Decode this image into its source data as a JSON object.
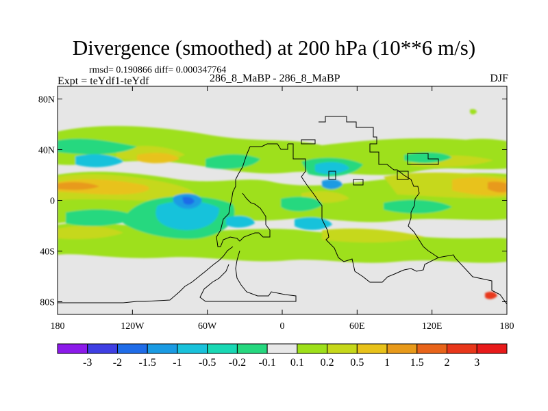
{
  "chart_data": {
    "type": "contour_map",
    "title": "Divergence (smoothed) at 200 hPa (10**6 m/s)",
    "stats_label": "rmsd= 0.190866 diff= 0.000347764",
    "experiment_label": "Expt = teYdf1-teYdf",
    "cases_label": "286_8_MaBP - 286_8_MaBP",
    "season_label": "DJF",
    "x_axis": {
      "range": [
        -180,
        180
      ],
      "ticks": [
        -180,
        -120,
        -60,
        0,
        60,
        120,
        180
      ],
      "tick_labels": [
        "180",
        "120W",
        "60W",
        "0",
        "60E",
        "120E",
        "180"
      ]
    },
    "y_axis": {
      "range": [
        -90,
        90
      ],
      "ticks": [
        80,
        40,
        0,
        -40,
        -80
      ],
      "tick_labels": [
        "80N",
        "40N",
        "0",
        "40S",
        "80S"
      ]
    },
    "colorbar": {
      "labels": [
        "-3",
        "-2",
        "-1.5",
        "-1",
        "-0.5",
        "-0.2",
        "-0.1",
        "0.1",
        "0.2",
        "0.5",
        "1",
        "1.5",
        "2",
        "3"
      ],
      "colors": [
        "#8c1aea",
        "#3f3fe3",
        "#1f6ce8",
        "#1a9be3",
        "#19c2db",
        "#19d8b4",
        "#26d87f",
        "#e8e8e8",
        "#9ee01a",
        "#c6d81a",
        "#e8c21a",
        "#e89a1a",
        "#e8641a",
        "#e8371a",
        "#e81a1a"
      ]
    },
    "features": [
      {
        "name": "tropical-westerly-divergence-band",
        "lon": [
          -180,
          -60
        ],
        "lat": [
          -10,
          30
        ],
        "sign": "positive",
        "peak": 1.5
      },
      {
        "name": "convergence-south-america",
        "lon": [
          -95,
          -40
        ],
        "lat": [
          -25,
          20
        ],
        "sign": "negative",
        "peak": -1.5
      },
      {
        "name": "divergence-asia-pacific",
        "lon": [
          60,
          180
        ],
        "lat": [
          0,
          25
        ],
        "sign": "positive",
        "peak": 1.5
      },
      {
        "name": "convergence-midlatitude-south",
        "lon": [
          -170,
          -60
        ],
        "lat": [
          -40,
          -10
        ],
        "sign": "negative",
        "peak": -0.5
      }
    ]
  }
}
